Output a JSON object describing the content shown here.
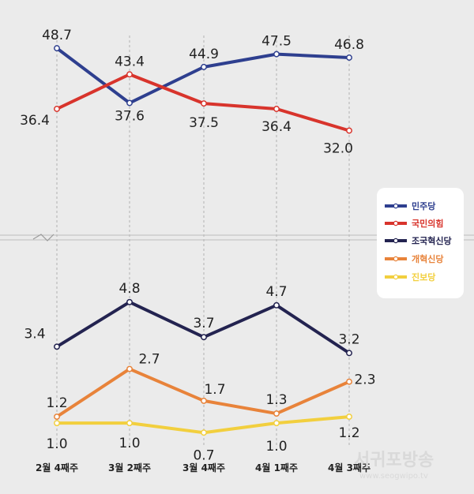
{
  "chart_data": {
    "type": "line",
    "categories": [
      "2월 4째주",
      "3월 2째주",
      "3월 4째주",
      "4월 1째주",
      "4월 3째주"
    ],
    "top_panel": {
      "series": [
        {
          "name": "민주당",
          "color": "#2e3f8f",
          "values": [
            48.7,
            37.6,
            44.9,
            47.5,
            46.8
          ],
          "labels": [
            "48.7",
            "37.6",
            "44.9",
            "47.5",
            "46.8"
          ]
        },
        {
          "name": "국민의힘",
          "color": "#d8342c",
          "values": [
            36.4,
            43.4,
            37.5,
            36.4,
            32.0
          ],
          "labels": [
            "36.4",
            "43.4",
            "37.5",
            "36.4",
            "32.0"
          ]
        }
      ]
    },
    "bottom_panel": {
      "series": [
        {
          "name": "조국혁신당",
          "color": "#232350",
          "values": [
            3.4,
            4.8,
            3.7,
            4.7,
            3.2
          ],
          "labels": [
            "3.4",
            "4.8",
            "3.7",
            "4.7",
            "3.2"
          ]
        },
        {
          "name": "개혁신당",
          "color": "#e8833a",
          "values": [
            1.2,
            2.7,
            1.7,
            1.3,
            2.3
          ],
          "labels": [
            "1.2",
            "2.7",
            "1.7",
            "1.3",
            "2.3"
          ]
        },
        {
          "name": "진보당",
          "color": "#f2cf3e",
          "values": [
            1.0,
            1.0,
            0.7,
            1.0,
            1.2
          ],
          "labels": [
            "1.0",
            "1.0",
            "0.7",
            "1.0",
            "1.2"
          ]
        }
      ]
    },
    "legend": [
      {
        "name": "민주당",
        "color": "#2e3f8f"
      },
      {
        "name": "국민의힘",
        "color": "#d8342c"
      },
      {
        "name": "조국혁신당",
        "color": "#232350"
      },
      {
        "name": "개혁신당",
        "color": "#e8833a"
      },
      {
        "name": "진보당",
        "color": "#f2cf3e"
      }
    ],
    "legend_placement": "right",
    "axis_break": true,
    "grid": "vertical dashed"
  },
  "watermark": {
    "name": "서귀포방송",
    "url": "www.seogwipo.tv"
  }
}
